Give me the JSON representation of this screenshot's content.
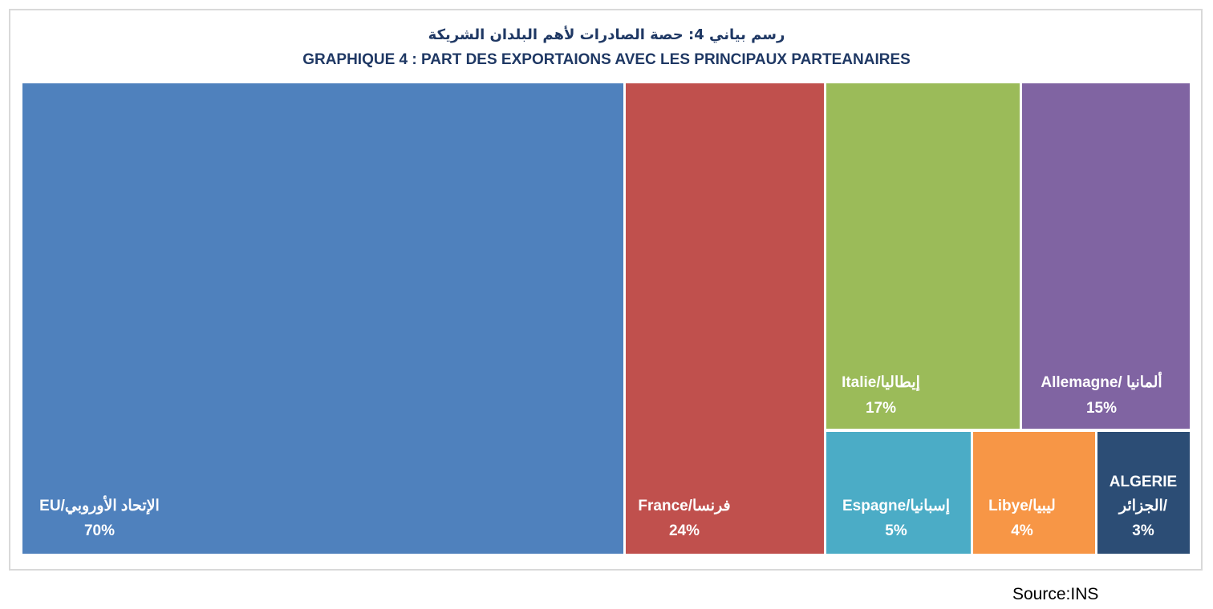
{
  "chart_data": {
    "type": "treemap",
    "title_ar": "رسم بياني 4: حصة الصادرات لأهم البلدان الشريكة",
    "title_fr": "GRAPHIQUE 4 : PART DES EXPORTAIONS AVEC LES PRINCIPAUX PARTEANAIRES",
    "items": [
      {
        "label": "EU/الإتحاد الأوروبي",
        "value_label": "70%",
        "value": 70,
        "color": "#4f81bd"
      },
      {
        "label": "France/فرنسا",
        "value_label": "24%",
        "value": 24,
        "color": "#c0504d"
      },
      {
        "label": "Italie/إيطاليا",
        "value_label": "17%",
        "value": 17,
        "color": "#9bbb59"
      },
      {
        "label": "Allemagne/ ألمانيا",
        "value_label": "15%",
        "value": 15,
        "color": "#8064a2"
      },
      {
        "label": "Espagne/إسبانيا",
        "value_label": "5%",
        "value": 5,
        "color": "#4bacc6"
      },
      {
        "label": "Libye/ليبيا",
        "value_label": "4%",
        "value": 4,
        "color": "#f79646"
      },
      {
        "label": "ALGERIE",
        "label2": "الجزائر/",
        "value_label": "3%",
        "value": 3,
        "color": "#2c4d75"
      }
    ]
  },
  "source": "Source:INS"
}
